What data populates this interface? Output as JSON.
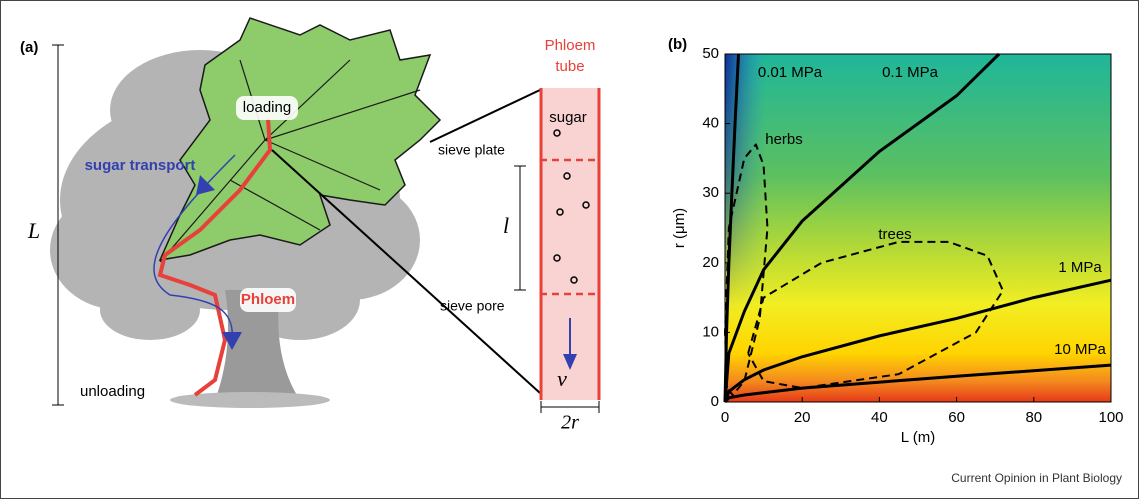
{
  "panel_a": {
    "label": "(a)",
    "height_symbol": "L",
    "loading": "loading",
    "sugar_transport": "sugar transport",
    "phloem": "Phloem",
    "unloading": "unloading",
    "tube_title": [
      "Phloem",
      "tube"
    ],
    "sugar": "sugar",
    "sieve_plate": "sieve plate",
    "plate_spacing": "l",
    "sieve_pore": "sieve pore",
    "velocity": "v",
    "tube_width": "2r"
  },
  "chart_data": {
    "type": "line",
    "panel_label": "(b)",
    "xlabel": "L (m)",
    "ylabel": "r (μm)",
    "xlim": [
      0,
      100
    ],
    "ylim": [
      0,
      50
    ],
    "xticks": [
      0,
      20,
      40,
      60,
      80,
      100
    ],
    "yticks": [
      0,
      10,
      20,
      30,
      40,
      50
    ],
    "series": [
      {
        "name": "0.01 MPa",
        "color": "#000000",
        "x": [
          0,
          0.4,
          1,
          1.7,
          2.6,
          3.5
        ],
        "values": [
          0,
          10,
          20,
          29,
          40,
          50
        ]
      },
      {
        "name": "0.1 MPa",
        "color": "#000000",
        "x": [
          0,
          1,
          5,
          10,
          20,
          30,
          40,
          50,
          60,
          71
        ],
        "values": [
          0,
          7,
          13,
          19,
          26,
          31,
          36,
          40,
          44,
          50
        ]
      },
      {
        "name": "1 MPa",
        "color": "#000000",
        "x": [
          0,
          1,
          5,
          10,
          20,
          40,
          60,
          80,
          100
        ],
        "values": [
          0,
          1.5,
          3.2,
          4.6,
          6.5,
          9.5,
          12,
          15,
          17.5
        ]
      },
      {
        "name": "10 MPa",
        "color": "#000000",
        "x": [
          0,
          1,
          5,
          20,
          60,
          100
        ],
        "values": [
          0,
          0.6,
          1,
          2,
          3.7,
          5.3
        ]
      }
    ],
    "regions": [
      {
        "name": "herbs",
        "x": [
          0.5,
          0,
          1,
          5,
          8,
          10,
          11,
          9,
          5,
          2,
          0.5
        ],
        "values": [
          2,
          10,
          25,
          35,
          37,
          34,
          25,
          12,
          3,
          1,
          2
        ]
      },
      {
        "name": "trees",
        "x": [
          6,
          10,
          25,
          45,
          58,
          68,
          72,
          65,
          45,
          20,
          10,
          6
        ],
        "values": [
          7,
          15,
          20,
          23,
          23,
          21,
          16,
          10,
          4,
          2,
          3,
          7
        ]
      }
    ]
  },
  "source": "Current Opinion in Plant Biology"
}
